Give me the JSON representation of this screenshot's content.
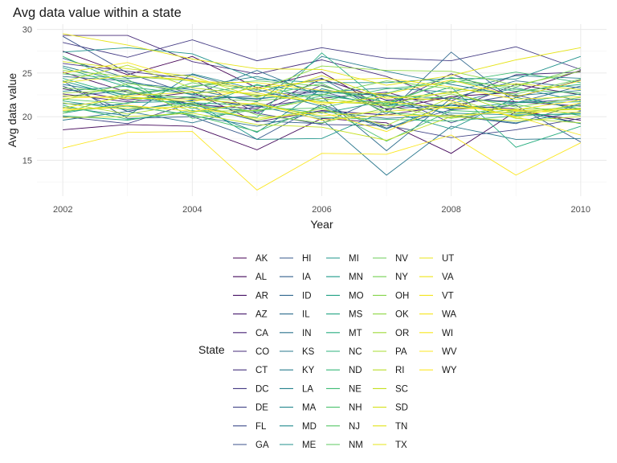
{
  "chart_data": {
    "type": "line",
    "title": "Avg data value within a state",
    "xlabel": "Year",
    "ylabel": "Avg data value",
    "xlim": [
      2001.6,
      2010.4
    ],
    "ylim": [
      10.9,
      30.6
    ],
    "x_ticks": [
      "2002",
      "2004",
      "2006",
      "2008",
      "2010"
    ],
    "y_ticks": [
      "15",
      "20",
      "25",
      "30"
    ],
    "grid": true,
    "legend_title": "State",
    "legend_position": "bottom",
    "x": [
      2002,
      2003,
      2004,
      2005,
      2006,
      2007,
      2008,
      2009,
      2010
    ],
    "series": [
      {
        "name": "AK",
        "color": "#440154",
        "values": [
          27.5,
          24.8,
          26.9,
          23.3,
          25.1,
          20.8,
          22.3,
          22.8,
          25.3
        ]
      },
      {
        "name": "AL",
        "color": "#450a5c",
        "values": [
          18.5,
          19.1,
          18.9,
          16.2,
          19.8,
          19.3,
          15.8,
          20.6,
          19.6
        ]
      },
      {
        "name": "AR",
        "color": "#471365",
        "values": [
          25.1,
          22.8,
          21.4,
          20.9,
          24.3,
          21.9,
          22.1,
          21.7,
          21.2
        ]
      },
      {
        "name": "AZ",
        "color": "#471b6d",
        "values": [
          23.2,
          21.9,
          22.8,
          19.4,
          20.7,
          20.2,
          21.3,
          20.9,
          19.2
        ]
      },
      {
        "name": "CA",
        "color": "#482375",
        "values": [
          22.6,
          21.7,
          22.2,
          21.1,
          22.1,
          22.8,
          20.8,
          23.7,
          22.5
        ]
      },
      {
        "name": "CO",
        "color": "#472b7a",
        "values": [
          29.3,
          29.3,
          26.3,
          24.9,
          26.5,
          24.6,
          21.8,
          24.8,
          25.1
        ]
      },
      {
        "name": "CT",
        "color": "#46337e",
        "values": [
          26.1,
          25.2,
          24.3,
          20.4,
          23.6,
          21.2,
          24.9,
          22.2,
          24.2
        ]
      },
      {
        "name": "DC",
        "color": "#443b84",
        "values": [
          28.5,
          26.8,
          28.8,
          26.4,
          27.9,
          26.7,
          26.4,
          28.0,
          25.4
        ]
      },
      {
        "name": "DE",
        "color": "#414487",
        "values": [
          20.0,
          19.2,
          21.6,
          20.4,
          19.1,
          19.0,
          17.6,
          18.5,
          19.8
        ]
      },
      {
        "name": "FL",
        "color": "#3e4c8a",
        "values": [
          23.5,
          20.6,
          21.9,
          22.4,
          23.0,
          22.5,
          19.3,
          21.6,
          22.0
        ]
      },
      {
        "name": "GA",
        "color": "#3b528b",
        "values": [
          29.2,
          25.0,
          22.5,
          22.0,
          22.9,
          20.9,
          21.3,
          22.5,
          20.7
        ]
      },
      {
        "name": "HI",
        "color": "#375a8c",
        "values": [
          24.1,
          19.8,
          20.0,
          17.4,
          21.4,
          18.7,
          20.8,
          21.3,
          17.1
        ]
      },
      {
        "name": "IA",
        "color": "#34618d",
        "values": [
          22.3,
          23.0,
          21.4,
          19.5,
          19.2,
          22.5,
          20.1,
          19.2,
          21.5
        ]
      },
      {
        "name": "ID",
        "color": "#31688e",
        "values": [
          26.7,
          24.4,
          24.8,
          22.8,
          24.4,
          20.3,
          27.4,
          21.6,
          23.5
        ]
      },
      {
        "name": "IL",
        "color": "#2e6e8e",
        "values": [
          24.6,
          24.1,
          22.5,
          25.3,
          22.3,
          16.1,
          22.1,
          24.1,
          23.3
        ]
      },
      {
        "name": "IN",
        "color": "#2c738e",
        "values": [
          21.5,
          21.3,
          20.1,
          18.9,
          20.6,
          19.8,
          20.2,
          19.3,
          20.6
        ]
      },
      {
        "name": "KS",
        "color": "#2a788e",
        "values": [
          19.6,
          20.6,
          19.3,
          21.2,
          19.7,
          13.3,
          18.9,
          17.4,
          17.5
        ]
      },
      {
        "name": "KY",
        "color": "#287d8e",
        "values": [
          25.8,
          23.9,
          23.1,
          21.7,
          26.9,
          25.2,
          23.7,
          22.4,
          23.0
        ]
      },
      {
        "name": "LA",
        "color": "#26828e",
        "values": [
          23.7,
          22.5,
          23.4,
          24.6,
          22.8,
          23.3,
          22.8,
          24.7,
          24.4
        ]
      },
      {
        "name": "MA",
        "color": "#24878e",
        "values": [
          21.1,
          20.1,
          24.9,
          23.1,
          21.2,
          18.6,
          21.5,
          23.3,
          21.8
        ]
      },
      {
        "name": "MD",
        "color": "#228c8d",
        "values": [
          22.9,
          23.5,
          21.1,
          18.2,
          23.2,
          21.6,
          20.4,
          20.2,
          20.3
        ]
      },
      {
        "name": "ME",
        "color": "#20928c",
        "values": [
          27.4,
          27.9,
          27.2,
          24.3,
          23.9,
          23.9,
          24.4,
          24.3,
          26.9
        ]
      },
      {
        "name": "MI",
        "color": "#1f968b",
        "values": [
          20.4,
          21.6,
          21.8,
          17.4,
          17.5,
          20.7,
          18.6,
          22.2,
          20.9
        ]
      },
      {
        "name": "MN",
        "color": "#1f9a8a",
        "values": [
          24.1,
          22.1,
          22.3,
          22.1,
          22.6,
          21.3,
          21.3,
          20.6,
          19.2
        ]
      },
      {
        "name": "MO",
        "color": "#21a185",
        "values": [
          21.8,
          20.8,
          21.6,
          21.3,
          20.4,
          21.8,
          20.9,
          21.6,
          21.7
        ]
      },
      {
        "name": "MS",
        "color": "#25a584",
        "values": [
          25.6,
          23.4,
          22.6,
          23.6,
          22.8,
          22.4,
          22.1,
          21.6,
          22.6
        ]
      },
      {
        "name": "MT",
        "color": "#28ae80",
        "values": [
          20.1,
          19.6,
          20.7,
          19.9,
          27.3,
          21.2,
          23.4,
          16.5,
          18.9
        ]
      },
      {
        "name": "NC",
        "color": "#2db27d",
        "values": [
          24.4,
          22.3,
          21.3,
          20.6,
          22.4,
          21.5,
          24.1,
          22.9,
          23.7
        ]
      },
      {
        "name": "ND",
        "color": "#37b878",
        "values": [
          21.3,
          19.7,
          20.5,
          21.6,
          19.9,
          19.7,
          19.5,
          20.1,
          20.4
        ]
      },
      {
        "name": "NE",
        "color": "#3fbc73",
        "values": [
          26.9,
          23.6,
          20.9,
          23.7,
          21.8,
          23.2,
          23.9,
          25.1,
          23.9
        ]
      },
      {
        "name": "NH",
        "color": "#4ac16d",
        "values": [
          20.6,
          21.2,
          20.2,
          18.3,
          21.2,
          17.2,
          20.7,
          20.4,
          21.3
        ]
      },
      {
        "name": "NJ",
        "color": "#55c667",
        "values": [
          24.9,
          24.3,
          19.8,
          20.8,
          21.0,
          22.7,
          24.5,
          23.1,
          22.7
        ]
      },
      {
        "name": "NM",
        "color": "#5ec962",
        "values": [
          22.0,
          21.5,
          23.9,
          22.3,
          23.8,
          20.5,
          19.9,
          21.4,
          20.1
        ]
      },
      {
        "name": "NV",
        "color": "#6ccd5a",
        "values": [
          20.4,
          22.6,
          23.5,
          24.1,
          23.5,
          21.6,
          24.1,
          23.4,
          25.6
        ]
      },
      {
        "name": "NY",
        "color": "#75d054",
        "values": [
          23.3,
          22.8,
          22.1,
          21.8,
          22.5,
          24.1,
          23.2,
          22.6,
          24.3
        ]
      },
      {
        "name": "OH",
        "color": "#84d44b",
        "values": [
          21.9,
          23.8,
          22.9,
          20.2,
          19.3,
          21.0,
          22.6,
          21.1,
          22.2
        ]
      },
      {
        "name": "OK",
        "color": "#8fd744",
        "values": [
          25.3,
          24.6,
          24.1,
          23.0,
          25.8,
          25.3,
          25.2,
          23.6,
          25.2
        ]
      },
      {
        "name": "OR",
        "color": "#9fda3a",
        "values": [
          22.7,
          23.1,
          20.6,
          20.7,
          22.1,
          21.2,
          19.8,
          20.9,
          20.9
        ]
      },
      {
        "name": "PA",
        "color": "#aadc32",
        "values": [
          21.6,
          20.3,
          21.5,
          19.6,
          20.9,
          19.0,
          22.2,
          19.8,
          19.3
        ]
      },
      {
        "name": "RI",
        "color": "#bade28",
        "values": [
          24.0,
          25.9,
          23.3,
          22.5,
          21.7,
          21.4,
          22.9,
          20.3,
          21.0
        ]
      },
      {
        "name": "SC",
        "color": "#c5e021",
        "values": [
          19.9,
          20.0,
          20.4,
          19.1,
          18.8,
          17.3,
          20.0,
          19.5,
          20.0
        ]
      },
      {
        "name": "SD",
        "color": "#d5e21a",
        "values": [
          26.3,
          25.5,
          24.6,
          22.2,
          24.7,
          22.1,
          22.7,
          23.8,
          23.1
        ]
      },
      {
        "name": "TN",
        "color": "#e2e418",
        "values": [
          22.4,
          22.1,
          22.0,
          21.4,
          20.1,
          20.6,
          21.1,
          20.7,
          20.8
        ]
      },
      {
        "name": "TX",
        "color": "#e6e419",
        "values": [
          29.5,
          28.2,
          26.6,
          25.5,
          25.4,
          23.6,
          24.7,
          26.5,
          27.9
        ]
      },
      {
        "name": "UT",
        "color": "#eae51a",
        "values": [
          21.0,
          22.3,
          21.7,
          23.4,
          21.4,
          22.3,
          21.8,
          19.9,
          21.6
        ]
      },
      {
        "name": "VA",
        "color": "#efe51c",
        "values": [
          23.9,
          24.7,
          24.2,
          23.2,
          24.2,
          24.4,
          23.4,
          22.0,
          22.3
        ]
      },
      {
        "name": "VT",
        "color": "#f3e51e",
        "values": [
          20.9,
          21.0,
          21.1,
          19.8,
          20.5,
          18.3,
          21.6,
          20.0,
          17.9
        ]
      },
      {
        "name": "WA",
        "color": "#f6e620",
        "values": [
          25.0,
          26.2,
          24.0,
          23.9,
          23.0,
          22.6,
          24.2,
          22.3,
          24.1
        ]
      },
      {
        "name": "WI",
        "color": "#f9e721",
        "values": [
          22.1,
          22.4,
          22.8,
          22.7,
          21.6,
          21.7,
          21.0,
          20.8,
          21.9
        ]
      },
      {
        "name": "WV",
        "color": "#fbe723",
        "values": [
          16.4,
          18.2,
          18.3,
          11.6,
          15.8,
          15.7,
          17.9,
          13.3,
          17.0
        ]
      },
      {
        "name": "WY",
        "color": "#fde725",
        "values": [
          20.7,
          21.3,
          20.6,
          21.6,
          19.6,
          20.2,
          20.1,
          20.6,
          20.5
        ]
      }
    ]
  }
}
